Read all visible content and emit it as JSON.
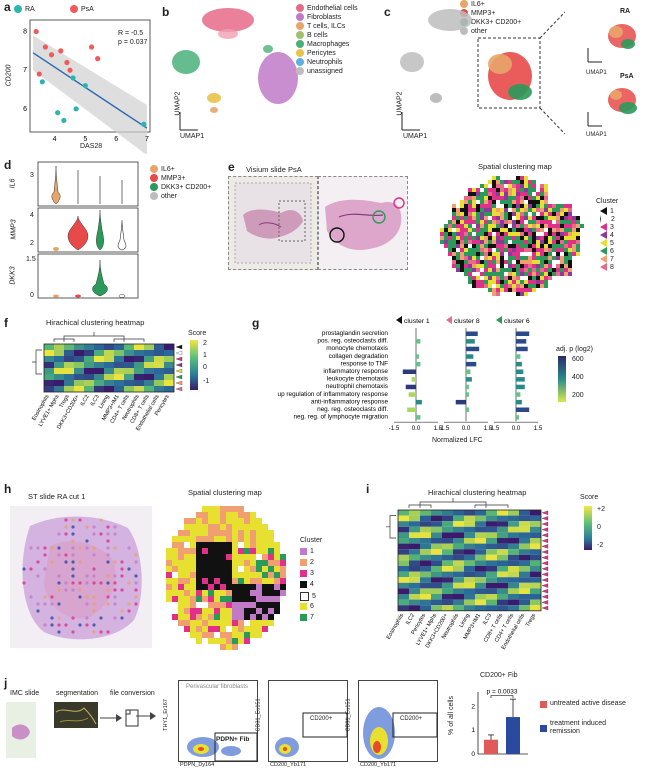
{
  "panels": {
    "a": {
      "label": "a",
      "legend": [
        {
          "name": "RA",
          "color": "#2ab5b0"
        },
        {
          "name": "PsA",
          "color": "#ef5b5b"
        }
      ],
      "stats": {
        "r": "R = -0.5",
        "p": "p = 0.037"
      },
      "xlabel": "DAS28",
      "ylabel": "CD200",
      "xticks": [
        "4",
        "5",
        "6",
        "7"
      ],
      "yticks": [
        "6",
        "7",
        "8"
      ]
    },
    "b": {
      "label": "b",
      "legend": [
        {
          "name": "Endothelial cells",
          "color": "#e86a8a"
        },
        {
          "name": "Fibroblasts",
          "color": "#c07ac8"
        },
        {
          "name": "T cells, ILCs",
          "color": "#e8a56a"
        },
        {
          "name": "B cells",
          "color": "#a0c070"
        },
        {
          "name": "Macrophages",
          "color": "#4ab07a"
        },
        {
          "name": "Pericytes",
          "color": "#e8c24a"
        },
        {
          "name": "Neutrophils",
          "color": "#5ab0e0"
        },
        {
          "name": "unassigned",
          "color": "#bdbdbd"
        }
      ],
      "axis1": "UMAP1",
      "axis2": "UMAP2"
    },
    "c": {
      "label": "c",
      "legend": [
        {
          "name": "IL6+",
          "color": "#e8a56a"
        },
        {
          "name": "MMP3+",
          "color": "#e84a4a"
        },
        {
          "name": "DKK3+ CD200+",
          "color": "#2a9a5a"
        },
        {
          "name": "other",
          "color": "#bdbdbd"
        }
      ],
      "inset_ra": "RA",
      "inset_psa": "PsA",
      "axis1": "UMAP1",
      "axis2": "UMAP2"
    },
    "d": {
      "label": "d",
      "genes": [
        "IL6",
        "MMP3",
        "DKK3"
      ],
      "yticks": [
        [
          "3"
        ],
        [
          "4",
          "2"
        ],
        [
          "1.5",
          "0"
        ]
      ],
      "legend": [
        {
          "name": "IL6+",
          "color": "#e8a56a"
        },
        {
          "name": "MMP3+",
          "color": "#e84a4a"
        },
        {
          "name": "DKK3+ CD200+",
          "color": "#2a9a5a"
        },
        {
          "name": "other",
          "color": "#bdbdbd"
        }
      ]
    },
    "e": {
      "label": "e",
      "title": "Visium slide PsA",
      "map_title": "Spatial clustering map",
      "cluster_title": "Cluster",
      "clusters": [
        {
          "name": "1",
          "color": "#111111"
        },
        {
          "name": "2",
          "color": "#ffffff"
        },
        {
          "name": "3",
          "color": "#e0308a"
        },
        {
          "name": "4",
          "color": "#8a3a9a"
        },
        {
          "name": "5",
          "color": "#e8e030"
        },
        {
          "name": "6",
          "color": "#2a9a5a"
        },
        {
          "name": "7",
          "color": "#f0a070"
        },
        {
          "name": "8",
          "color": "#e86a8a"
        }
      ]
    },
    "f": {
      "label": "f",
      "title": "Hirachical clustering heatmap",
      "score_title": "Score",
      "score_ticks": [
        "2",
        "1",
        "0",
        "-1"
      ],
      "columns": [
        "Eosinophils",
        "LYVE1+ Mphs",
        "Tregs",
        "DKK3+CD200+",
        "ILC2",
        "ILC3",
        "Lining",
        "MMP3+IM1",
        "CD4+ T cells",
        "Neutrophils",
        "CD8+ T cells",
        "Endothelial cells",
        "Pericytes"
      ]
    },
    "g": {
      "label": "g",
      "headers": [
        "cluster 1",
        "cluster 8",
        "cluster 6"
      ],
      "terms": [
        "prostaglandin secretion",
        "pos. reg. osteoclasts diff.",
        "monocyte chemotaxis",
        "collagen degradation",
        "response to TNF",
        "inflammatory response",
        "leukocyte chemotaxis",
        "neutrophil chemotaxis",
        "up regulation of inflammatory response",
        "anti-inflammatory response",
        "neg. reg. osteoclasts diff.",
        "neg. reg. of lymphocyte migration"
      ],
      "xticks": [
        "-1.5",
        "0.0",
        "1.5",
        "-1.5",
        "0.0",
        "1.5",
        "-1.5",
        "0.0",
        "1.5"
      ],
      "xlabel": "Normalized LFC",
      "legend_title": "adj. p (log2)",
      "legend_ticks": [
        "600",
        "400",
        "200"
      ],
      "bars": [
        [
          0,
          0.3,
          0,
          0.2,
          0.3,
          -0.9,
          -0.3,
          -0.7,
          -0.5,
          0.4,
          -0.6,
          0.3
        ],
        [
          0.8,
          0.6,
          0.9,
          0.5,
          0.7,
          0.3,
          0.4,
          0.2,
          0.2,
          -0.7,
          0.2,
          0
        ],
        [
          0.9,
          0.7,
          0.8,
          0.3,
          0.4,
          0.5,
          0.6,
          0.6,
          0.3,
          0.4,
          0.9,
          0.2
        ]
      ]
    },
    "h": {
      "label": "h",
      "title": "ST slide RA cut 1",
      "map_title": "Spatial clustering map",
      "cluster_title": "Cluster",
      "clusters": [
        {
          "name": "1",
          "color": "#c07ac8"
        },
        {
          "name": "2",
          "color": "#f0a070"
        },
        {
          "name": "3",
          "color": "#e0308a"
        },
        {
          "name": "4",
          "color": "#111111"
        },
        {
          "name": "5",
          "color": "#ffffff"
        },
        {
          "name": "6",
          "color": "#e8e030"
        },
        {
          "name": "7",
          "color": "#2a9a5a"
        }
      ]
    },
    "i": {
      "label": "i",
      "title": "Hirachical clustering heatmap",
      "score_title": "Score",
      "score_ticks": [
        "+2",
        "0",
        "-2"
      ],
      "columns": [
        "Eosinophils",
        "ILC2",
        "Pericytes",
        "LYVE1+ Mphs",
        "DKK3+CD200+",
        "Neutrophils",
        "Lining",
        "MMP3+IM1",
        "ILC3",
        "CD8+ T cells",
        "CD4+ T cells",
        "Endothelial cells",
        "Tregs"
      ]
    },
    "j": {
      "label": "j",
      "steps": [
        "IMC slide",
        "segmentation",
        "file conversion"
      ],
      "gate1": {
        "label": "Perivascular fibroblasts",
        "gate": "PDPN+ Fib",
        "y": "THY1_Er167",
        "x": "PDPN_Dy164"
      },
      "gate2": {
        "gate": "CD200+",
        "y": "CD31_Eu151",
        "x": "CD200_Yb171"
      },
      "gate3": {
        "gate": "CD200+",
        "y": "CD31_Eu151",
        "x": "CD200_Yb171"
      },
      "bar_title": "CD200+ Fib",
      "bar_p": "p = 0.0033",
      "bar_ylabel": "% of all cells",
      "bar_yticks": [
        "0",
        "1",
        "2"
      ],
      "legend": [
        {
          "name": "untreated active disease",
          "color": "#e05a5a"
        },
        {
          "name": "treatment induced remission",
          "color": "#2a4aa0"
        }
      ]
    }
  },
  "chart_data": [
    {
      "type": "scatter",
      "title": "",
      "xlabel": "DAS28",
      "ylabel": "CD200",
      "series": [
        {
          "name": "RA",
          "points": [
            [
              3.6,
              6.7
            ],
            [
              4.1,
              5.9
            ],
            [
              4.3,
              5.7
            ],
            [
              4.7,
              6.0
            ],
            [
              5.0,
              6.6
            ],
            [
              4.6,
              6.8
            ],
            [
              6.9,
              5.6
            ]
          ]
        },
        {
          "name": "PsA",
          "points": [
            [
              3.4,
              8.0
            ],
            [
              3.7,
              7.6
            ],
            [
              3.9,
              7.4
            ],
            [
              4.2,
              7.5
            ],
            [
              4.4,
              7.2
            ],
            [
              4.5,
              7.0
            ],
            [
              5.2,
              7.6
            ],
            [
              5.4,
              7.3
            ],
            [
              3.5,
              6.9
            ]
          ]
        }
      ],
      "xlim": [
        3.2,
        7.1
      ],
      "ylim": [
        5.4,
        8.3
      ]
    },
    {
      "type": "bar",
      "title": "CD200+ Fib",
      "categories": [
        "untreated active disease",
        "treatment induced remission"
      ],
      "values": [
        0.6,
        1.55
      ],
      "ylim": [
        0,
        2.6
      ]
    }
  ]
}
